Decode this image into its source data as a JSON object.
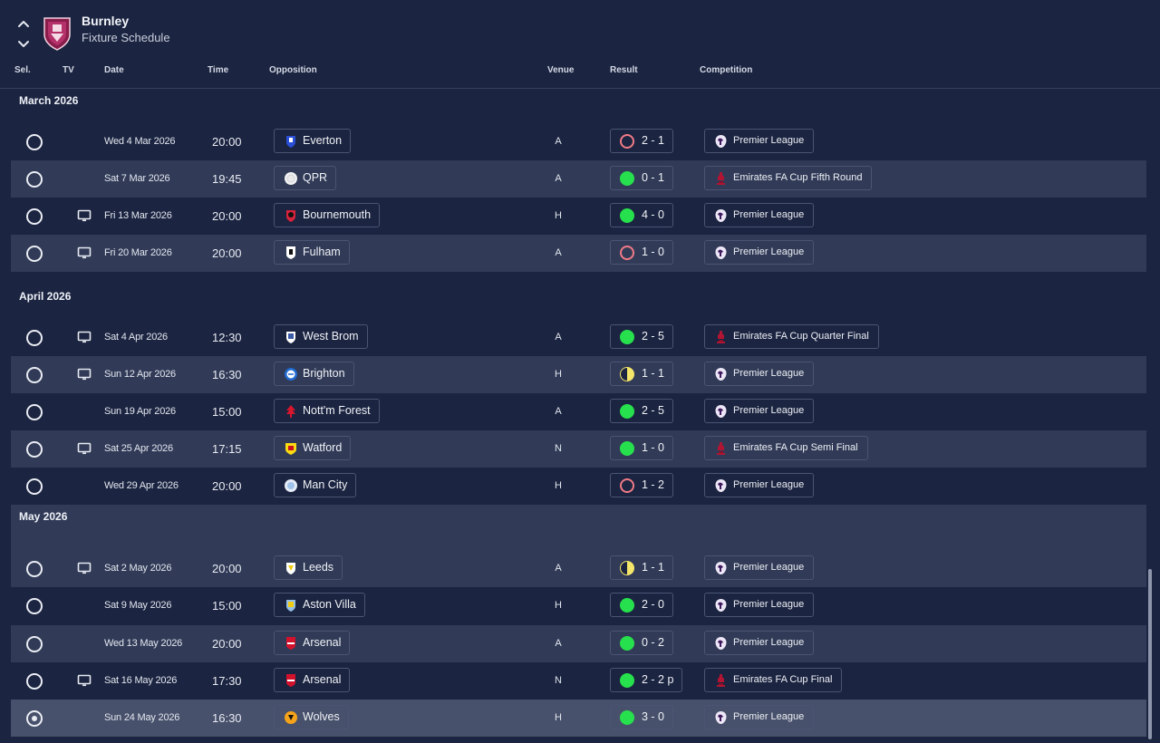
{
  "header": {
    "club_name": "Burnley",
    "subtitle": "Fixture Schedule"
  },
  "columns": {
    "sel": "Sel.",
    "tv": "TV",
    "date": "Date",
    "time": "Time",
    "opposition": "Opposition",
    "venue": "Venue",
    "result": "Result",
    "competition": "Competition"
  },
  "colors": {
    "win": "#27e04d",
    "loss": "#f07b86",
    "draw": "#f4e66a",
    "background": "#1b2440",
    "row_shaded": "#313b57"
  },
  "months": [
    {
      "label": "March 2026"
    },
    {
      "label": "April 2026"
    },
    {
      "label": "May 2026"
    }
  ],
  "fixtures": [
    {
      "tv": false,
      "date": "Wed 4 Mar 2026",
      "time": "20:00",
      "opposition": "Everton",
      "crest": "everton-crest-icon",
      "venue": "A",
      "result": "2 - 1",
      "outcome": "loss",
      "competition": "Premier League",
      "comp_icon": "premier-league-icon",
      "selected": false
    },
    {
      "tv": false,
      "date": "Sat 7 Mar 2026",
      "time": "19:45",
      "opposition": "QPR",
      "crest": "qpr-crest-icon",
      "venue": "A",
      "result": "0 - 1",
      "outcome": "win",
      "competition": "Emirates FA Cup Fifth Round",
      "comp_icon": "fa-cup-icon",
      "selected": false
    },
    {
      "tv": true,
      "date": "Fri 13 Mar 2026",
      "time": "20:00",
      "opposition": "Bournemouth",
      "crest": "bournemouth-crest-icon",
      "venue": "H",
      "result": "4 - 0",
      "outcome": "win",
      "competition": "Premier League",
      "comp_icon": "premier-league-icon",
      "selected": false
    },
    {
      "tv": true,
      "date": "Fri 20 Mar 2026",
      "time": "20:00",
      "opposition": "Fulham",
      "crest": "fulham-crest-icon",
      "venue": "A",
      "result": "1 - 0",
      "outcome": "loss",
      "competition": "Premier League",
      "comp_icon": "premier-league-icon",
      "selected": false
    },
    {
      "tv": true,
      "date": "Sat 4 Apr 2026",
      "time": "12:30",
      "opposition": "West Brom",
      "crest": "west-brom-crest-icon",
      "venue": "A",
      "result": "2 - 5",
      "outcome": "win",
      "competition": "Emirates FA Cup Quarter Final",
      "comp_icon": "fa-cup-icon",
      "selected": false
    },
    {
      "tv": true,
      "date": "Sun 12 Apr 2026",
      "time": "16:30",
      "opposition": "Brighton",
      "crest": "brighton-crest-icon",
      "venue": "H",
      "result": "1 - 1",
      "outcome": "draw",
      "competition": "Premier League",
      "comp_icon": "premier-league-icon",
      "selected": false
    },
    {
      "tv": false,
      "date": "Sun 19 Apr 2026",
      "time": "15:00",
      "opposition": "Nott'm Forest",
      "crest": "nottm-forest-crest-icon",
      "venue": "A",
      "result": "2 - 5",
      "outcome": "win",
      "competition": "Premier League",
      "comp_icon": "premier-league-icon",
      "selected": false
    },
    {
      "tv": true,
      "date": "Sat 25 Apr 2026",
      "time": "17:15",
      "opposition": "Watford",
      "crest": "watford-crest-icon",
      "venue": "N",
      "result": "1 - 0",
      "outcome": "win",
      "competition": "Emirates FA Cup Semi Final",
      "comp_icon": "fa-cup-icon",
      "selected": false
    },
    {
      "tv": false,
      "date": "Wed 29 Apr 2026",
      "time": "20:00",
      "opposition": "Man City",
      "crest": "man-city-crest-icon",
      "venue": "H",
      "result": "1 - 2",
      "outcome": "loss",
      "competition": "Premier League",
      "comp_icon": "premier-league-icon",
      "selected": false
    },
    {
      "tv": true,
      "date": "Sat 2 May 2026",
      "time": "20:00",
      "opposition": "Leeds",
      "crest": "leeds-crest-icon",
      "venue": "A",
      "result": "1 - 1",
      "outcome": "draw",
      "competition": "Premier League",
      "comp_icon": "premier-league-icon",
      "selected": false
    },
    {
      "tv": false,
      "date": "Sat 9 May 2026",
      "time": "15:00",
      "opposition": "Aston Villa",
      "crest": "aston-villa-crest-icon",
      "venue": "H",
      "result": "2 - 0",
      "outcome": "win",
      "competition": "Premier League",
      "comp_icon": "premier-league-icon",
      "selected": false
    },
    {
      "tv": false,
      "date": "Wed 13 May 2026",
      "time": "20:00",
      "opposition": "Arsenal",
      "crest": "arsenal-crest-icon",
      "venue": "A",
      "result": "0 - 2",
      "outcome": "win",
      "competition": "Premier League",
      "comp_icon": "premier-league-icon",
      "selected": false
    },
    {
      "tv": true,
      "date": "Sat 16 May 2026",
      "time": "17:30",
      "opposition": "Arsenal",
      "crest": "arsenal-crest-icon",
      "venue": "N",
      "result": "2 - 2 p",
      "outcome": "win",
      "competition": "Emirates FA Cup Final",
      "comp_icon": "fa-cup-icon",
      "selected": false
    },
    {
      "tv": false,
      "date": "Sun 24 May 2026",
      "time": "16:30",
      "opposition": "Wolves",
      "crest": "wolves-crest-icon",
      "venue": "H",
      "result": "3 - 0",
      "outcome": "win",
      "competition": "Premier League",
      "comp_icon": "premier-league-icon",
      "selected": true
    }
  ]
}
